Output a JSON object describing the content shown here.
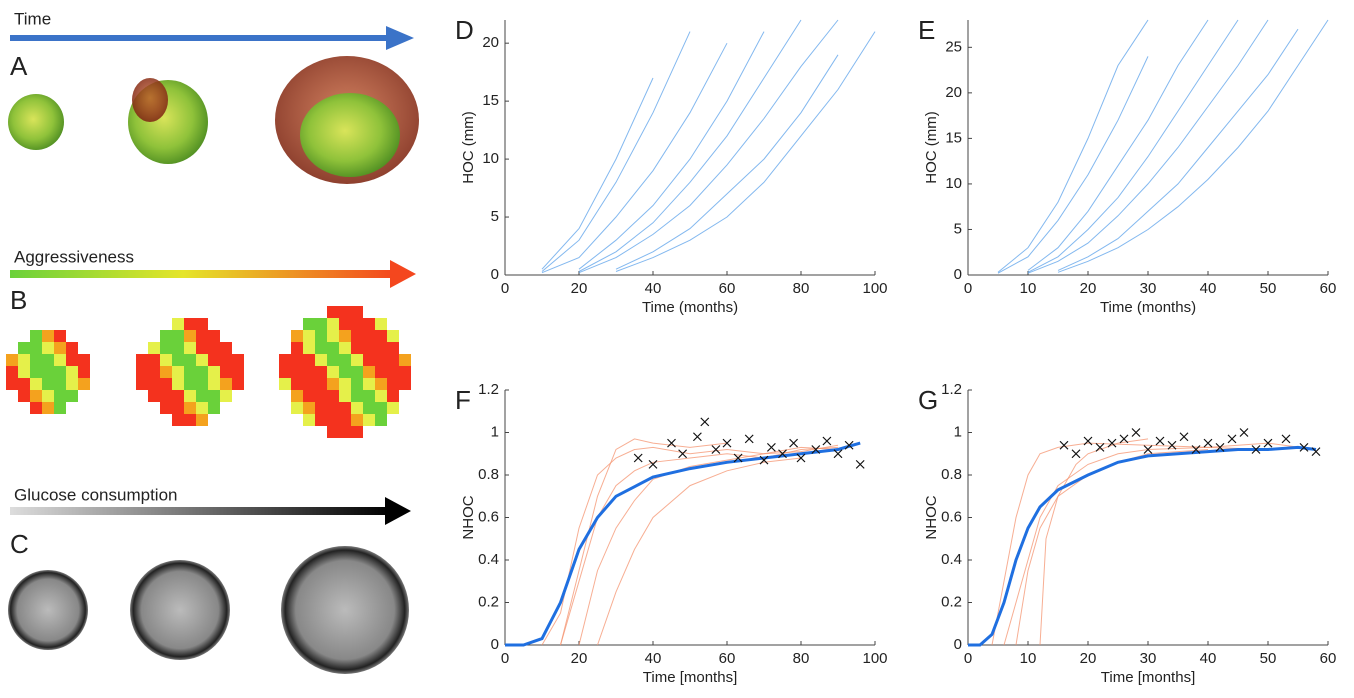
{
  "illustration": {
    "panel_labels": [
      "A",
      "B",
      "C"
    ],
    "time_label": "Time",
    "aggressiveness_label": "Aggressiveness",
    "glucose_label": "Glucose consumption"
  },
  "chart_data": [
    {
      "type": "line",
      "panel": "D",
      "xlabel": "Time (months)",
      "ylabel": "HOC (mm)",
      "xlim": [
        0,
        100
      ],
      "xticks": [
        0,
        20,
        40,
        60,
        80,
        100
      ],
      "ylim": [
        0,
        22
      ],
      "yticks": [
        0,
        5,
        10,
        15,
        20
      ],
      "x": [
        0,
        10,
        20,
        30,
        40,
        50,
        60,
        70,
        80,
        90,
        100
      ],
      "series": [
        {
          "color": "#5aa0ea",
          "values": [
            null,
            0.3,
            3,
            8,
            14,
            21,
            null,
            null,
            null,
            null,
            null
          ]
        },
        {
          "color": "#5aa0ea",
          "values": [
            null,
            0.5,
            4,
            10,
            17,
            null,
            null,
            null,
            null,
            null,
            null
          ]
        },
        {
          "color": "#5aa0ea",
          "values": [
            null,
            0.2,
            1.5,
            5,
            9,
            14,
            20,
            null,
            null,
            null,
            null
          ]
        },
        {
          "color": "#5aa0ea",
          "values": [
            null,
            null,
            0.5,
            3,
            6,
            10,
            15,
            21,
            null,
            null,
            null
          ]
        },
        {
          "color": "#5aa0ea",
          "values": [
            null,
            null,
            0.3,
            2,
            4.5,
            8,
            12,
            17,
            22,
            null,
            null
          ]
        },
        {
          "color": "#5aa0ea",
          "values": [
            null,
            null,
            0.2,
            1.5,
            3.5,
            6,
            9.5,
            13.5,
            18,
            22,
            null
          ]
        },
        {
          "color": "#5aa0ea",
          "values": [
            null,
            null,
            null,
            0.5,
            2,
            4,
            7,
            10,
            14,
            19,
            null
          ]
        },
        {
          "color": "#5aa0ea",
          "values": [
            null,
            null,
            null,
            0.3,
            1.5,
            3,
            5,
            8,
            12,
            16,
            21
          ]
        }
      ]
    },
    {
      "type": "line",
      "panel": "E",
      "xlabel": "Time (months)",
      "ylabel": "HOC (mm)",
      "xlim": [
        0,
        60
      ],
      "xticks": [
        0,
        10,
        20,
        30,
        40,
        50,
        60
      ],
      "ylim": [
        0,
        28
      ],
      "yticks": [
        0,
        5,
        10,
        15,
        20,
        25
      ],
      "x": [
        0,
        5,
        10,
        15,
        20,
        25,
        30,
        35,
        40,
        45,
        50,
        55,
        60
      ],
      "series": [
        {
          "color": "#5aa0ea",
          "values": [
            null,
            0.3,
            3,
            8,
            15,
            23,
            28,
            null,
            null,
            null,
            null,
            null,
            null
          ]
        },
        {
          "color": "#5aa0ea",
          "values": [
            null,
            0.2,
            2,
            6,
            11,
            17,
            24,
            null,
            null,
            null,
            null,
            null,
            null
          ]
        },
        {
          "color": "#5aa0ea",
          "values": [
            null,
            null,
            0.5,
            3,
            7,
            12,
            17,
            23,
            28,
            null,
            null,
            null,
            null
          ]
        },
        {
          "color": "#5aa0ea",
          "values": [
            null,
            null,
            0.3,
            2,
            5,
            8.5,
            13,
            18,
            23,
            28,
            null,
            null,
            null
          ]
        },
        {
          "color": "#5aa0ea",
          "values": [
            null,
            null,
            0.2,
            1.5,
            3.5,
            6.5,
            10,
            14,
            18.5,
            23,
            28,
            null,
            null
          ]
        },
        {
          "color": "#5aa0ea",
          "values": [
            null,
            null,
            null,
            0.5,
            2,
            4,
            7,
            10,
            14,
            18,
            22,
            27,
            null
          ]
        },
        {
          "color": "#5aa0ea",
          "values": [
            null,
            null,
            null,
            0.3,
            1.5,
            3,
            5,
            7.5,
            10.5,
            14,
            18,
            23,
            28
          ]
        }
      ]
    },
    {
      "type": "line",
      "panel": "F",
      "xlabel": "Time [months]",
      "ylabel": "NHOC",
      "xlim": [
        0,
        100
      ],
      "xticks": [
        0,
        20,
        40,
        60,
        80,
        100
      ],
      "ylim": [
        0,
        1.2
      ],
      "yticks": [
        0,
        0.2,
        0.4,
        0.6,
        0.8,
        1,
        1.2
      ],
      "series": [
        {
          "color": "#f4936f",
          "x": [
            10,
            15,
            20,
            25,
            30,
            35,
            40,
            50,
            60,
            70,
            80,
            90
          ],
          "values": [
            0,
            0.15,
            0.55,
            0.8,
            0.88,
            0.92,
            0.93,
            0.9,
            0.92,
            0.9,
            0.93,
            0.92
          ]
        },
        {
          "color": "#f4936f",
          "x": [
            15,
            20,
            25,
            30,
            35,
            40,
            50,
            60,
            70,
            80,
            90
          ],
          "values": [
            0,
            0.3,
            0.6,
            0.75,
            0.82,
            0.86,
            0.88,
            0.9,
            0.88,
            0.92,
            0.93
          ]
        },
        {
          "color": "#f4936f",
          "x": [
            20,
            25,
            30,
            35,
            40,
            50,
            60,
            70,
            80,
            90
          ],
          "values": [
            0,
            0.35,
            0.55,
            0.68,
            0.78,
            0.84,
            0.87,
            0.9,
            0.91,
            0.94
          ]
        },
        {
          "color": "#f4936f",
          "x": [
            15,
            20,
            25,
            30,
            35,
            40,
            50,
            60
          ],
          "values": [
            0,
            0.35,
            0.7,
            0.92,
            0.97,
            0.95,
            0.93,
            0.95
          ]
        },
        {
          "color": "#f4936f",
          "x": [
            25,
            30,
            35,
            40,
            50,
            60,
            70,
            80
          ],
          "values": [
            0,
            0.25,
            0.45,
            0.6,
            0.75,
            0.82,
            0.86,
            0.88
          ]
        },
        {
          "color": "#1f6fe0",
          "x": [
            0,
            5,
            10,
            15,
            20,
            25,
            30,
            40,
            50,
            60,
            70,
            80,
            90,
            96
          ],
          "values": [
            0,
            0,
            0.03,
            0.2,
            0.45,
            0.6,
            0.7,
            0.79,
            0.83,
            0.86,
            0.88,
            0.9,
            0.92,
            0.95
          ]
        },
        {
          "type": "scatter",
          "color": "#111111",
          "x": [
            36,
            40,
            45,
            48,
            52,
            54,
            57,
            60,
            63,
            66,
            70,
            72,
            75,
            78,
            80,
            84,
            87,
            90,
            93,
            96
          ],
          "values": [
            0.88,
            0.85,
            0.95,
            0.9,
            0.98,
            1.05,
            0.92,
            0.95,
            0.88,
            0.97,
            0.87,
            0.93,
            0.9,
            0.95,
            0.88,
            0.92,
            0.96,
            0.9,
            0.94,
            0.85
          ]
        }
      ]
    },
    {
      "type": "line",
      "panel": "G",
      "xlabel": "Time [months]",
      "ylabel": "NHOC",
      "xlim": [
        0,
        60
      ],
      "xticks": [
        0,
        10,
        20,
        30,
        40,
        50,
        60
      ],
      "ylim": [
        0,
        1.2
      ],
      "yticks": [
        0,
        0.2,
        0.4,
        0.6,
        0.8,
        1,
        1.2
      ],
      "series": [
        {
          "color": "#f4936f",
          "x": [
            4,
            6,
            8,
            10,
            12,
            15,
            20,
            30,
            40,
            50,
            58
          ],
          "values": [
            0,
            0.3,
            0.6,
            0.8,
            0.9,
            0.93,
            0.95,
            0.94,
            0.93,
            0.95,
            0.92
          ]
        },
        {
          "color": "#f4936f",
          "x": [
            6,
            8,
            10,
            12,
            15,
            20,
            25,
            30,
            40,
            50
          ],
          "values": [
            0,
            0.2,
            0.4,
            0.6,
            0.75,
            0.85,
            0.9,
            0.92,
            0.93,
            0.92
          ]
        },
        {
          "color": "#f4936f",
          "x": [
            8,
            10,
            12,
            15,
            20,
            25,
            30,
            40
          ],
          "values": [
            0,
            0.35,
            0.55,
            0.7,
            0.8,
            0.86,
            0.9,
            0.92
          ]
        },
        {
          "color": "#f4936f",
          "x": [
            12,
            13,
            15,
            18,
            20,
            25,
            30
          ],
          "values": [
            0,
            0.5,
            0.7,
            0.85,
            0.9,
            0.95,
            0.97
          ]
        },
        {
          "color": "#1f6fe0",
          "x": [
            0,
            2,
            4,
            6,
            8,
            10,
            12,
            15,
            20,
            25,
            30,
            35,
            40,
            45,
            50,
            55,
            58
          ],
          "values": [
            0,
            0,
            0.05,
            0.2,
            0.4,
            0.55,
            0.65,
            0.73,
            0.8,
            0.86,
            0.89,
            0.9,
            0.91,
            0.92,
            0.92,
            0.93,
            0.92
          ]
        },
        {
          "type": "scatter",
          "color": "#111111",
          "x": [
            16,
            18,
            20,
            22,
            24,
            26,
            28,
            30,
            32,
            34,
            36,
            38,
            40,
            42,
            44,
            46,
            48,
            50,
            53,
            56,
            58
          ],
          "values": [
            0.94,
            0.9,
            0.96,
            0.93,
            0.95,
            0.97,
            1.0,
            0.92,
            0.96,
            0.94,
            0.98,
            0.92,
            0.95,
            0.93,
            0.97,
            1.0,
            0.92,
            0.95,
            0.97,
            0.93,
            0.91
          ]
        }
      ]
    }
  ]
}
